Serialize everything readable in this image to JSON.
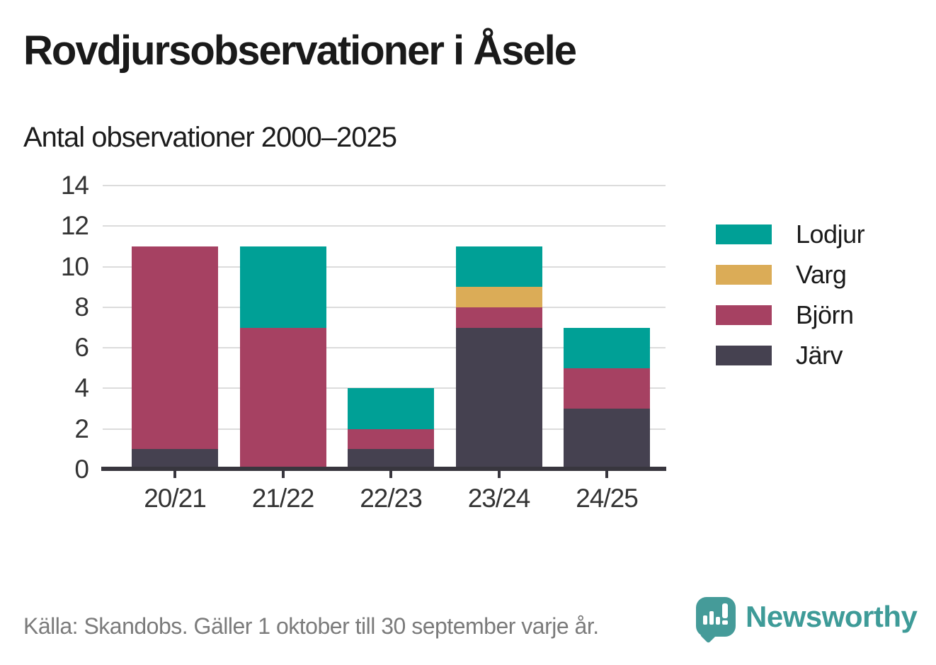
{
  "header": {
    "title": "Rovdjursobservationer i Åsele",
    "subtitle": "Antal observationer 2000–2025"
  },
  "chart_data": {
    "type": "bar",
    "stacked": true,
    "title": "Rovdjursobservationer i Åsele",
    "subtitle": "Antal observationer 2000–2025",
    "categories": [
      "20/21",
      "21/22",
      "22/23",
      "23/24",
      "24/25"
    ],
    "series": [
      {
        "name": "Järv",
        "color": "#454150",
        "values": [
          1,
          0,
          1,
          7,
          3
        ]
      },
      {
        "name": "Björn",
        "color": "#a64162",
        "values": [
          10,
          7,
          1,
          1,
          2
        ]
      },
      {
        "name": "Varg",
        "color": "#dbac57",
        "values": [
          0,
          0,
          0,
          1,
          0
        ]
      },
      {
        "name": "Lodjur",
        "color": "#00a096",
        "values": [
          0,
          4,
          2,
          2,
          2
        ]
      }
    ],
    "totals": [
      11,
      11,
      4,
      11,
      7
    ],
    "ylim": [
      0,
      14
    ],
    "yticks": [
      0,
      2,
      4,
      6,
      8,
      10,
      12,
      14
    ],
    "grid": true,
    "legend_position": "right",
    "legend_entries": [
      {
        "label": "Lodjur",
        "color": "#00a096"
      },
      {
        "label": "Varg",
        "color": "#dbac57"
      },
      {
        "label": "Björn",
        "color": "#a64162"
      },
      {
        "label": "Järv",
        "color": "#454150"
      }
    ]
  },
  "footer": {
    "source_text": "Källa: Skandobs. Gäller 1 oktober till 30 september varje år.",
    "brand_name": "Newsworthy"
  },
  "colors": {
    "background": "#ffffff",
    "axis": "#38363e",
    "gridline": "#dcdcdc",
    "title_text": "#1a1a1a",
    "tick_text": "#333333",
    "source_text": "#7b7b7b",
    "brand_teal": "#459b99"
  }
}
